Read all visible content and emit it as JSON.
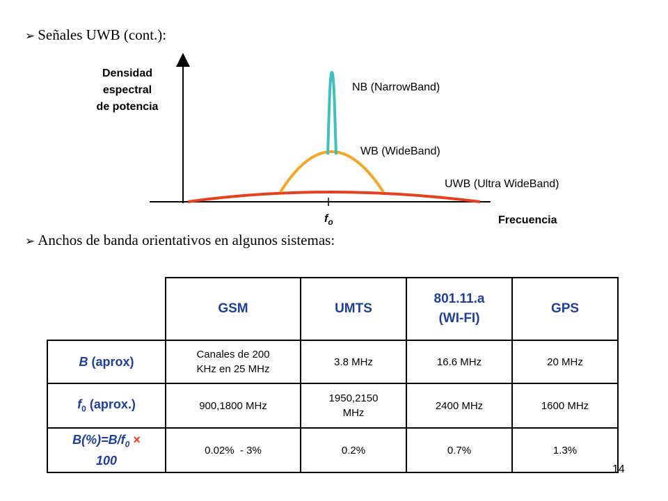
{
  "slide": {
    "bullet1": "Señales UWB (cont.):",
    "bullet2": "Anchos de banda orientativos en algunos sistemas:",
    "bullet_mark": "➢",
    "page_number": "14"
  },
  "diagram": {
    "y_axis_label": [
      "Densidad",
      "espectral",
      "de potencia"
    ],
    "x_axis_label": "Frecuencia",
    "center_label_main": "f",
    "center_label_sub": "o",
    "curves": [
      {
        "label": "NB (NarrowBand)",
        "color": "#3fbfbf"
      },
      {
        "label": "WB (WideBand)",
        "color": "#f5a623"
      },
      {
        "label": "UWB (Ultra WideBand)",
        "color": "#e8401c"
      }
    ]
  },
  "table": {
    "headers": [
      "GSM",
      "UMTS",
      "801.11.a (WI-FI)",
      "GPS"
    ],
    "header3_line1": "801.11.a",
    "header3_line2": "(WI-FI)",
    "rows": [
      {
        "label_main": "B",
        "label_rest": " (aprox)",
        "cells": [
          "Canales de 200 KHz en 25 MHz",
          "3.8 MHz",
          "16.6 MHz",
          "20 MHz"
        ],
        "cell0_line1": "Canales de 200",
        "cell0_line2": "KHz en 25 MHz"
      },
      {
        "label_main": "f",
        "label_sub": "0",
        "label_rest": " (aprox.)",
        "cells": [
          "900,1800 MHz",
          "1950,2150 MHz",
          "2400 MHz",
          "1600 MHz"
        ],
        "cell1_line1": "1950,2150",
        "cell1_line2": "MHz"
      },
      {
        "label_line1": "B(%)=B/f",
        "label_sub": "0",
        "label_times": "×",
        "label_line2": "100",
        "cells": [
          "0.02%  - 3%",
          "0.2%",
          "0.7%",
          "1.3%"
        ]
      }
    ]
  }
}
